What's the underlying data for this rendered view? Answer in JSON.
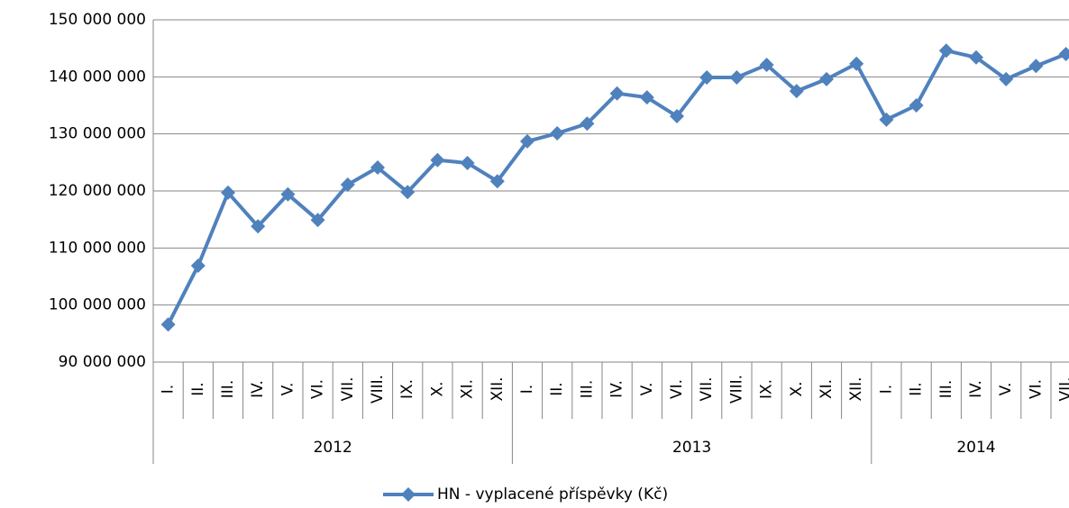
{
  "chart_data": {
    "type": "line",
    "categories": [
      [
        "2012",
        "I."
      ],
      [
        "2012",
        "II."
      ],
      [
        "2012",
        "III."
      ],
      [
        "2012",
        "IV."
      ],
      [
        "2012",
        "V."
      ],
      [
        "2012",
        "VI."
      ],
      [
        "2012",
        "VII."
      ],
      [
        "2012",
        "VIII."
      ],
      [
        "2012",
        "IX."
      ],
      [
        "2012",
        "X."
      ],
      [
        "2012",
        "XI."
      ],
      [
        "2012",
        "XII."
      ],
      [
        "2013",
        "I."
      ],
      [
        "2013",
        "II."
      ],
      [
        "2013",
        "III."
      ],
      [
        "2013",
        "IV."
      ],
      [
        "2013",
        "V."
      ],
      [
        "2013",
        "VI."
      ],
      [
        "2013",
        "VII."
      ],
      [
        "2013",
        "VIII."
      ],
      [
        "2013",
        "IX."
      ],
      [
        "2013",
        "X."
      ],
      [
        "2013",
        "XI."
      ],
      [
        "2013",
        "XII."
      ],
      [
        "2014",
        "I."
      ],
      [
        "2014",
        "II."
      ],
      [
        "2014",
        "III."
      ],
      [
        "2014",
        "IV."
      ],
      [
        "2014",
        "V."
      ],
      [
        "2014",
        "VI."
      ],
      [
        "2014",
        "VII."
      ]
    ],
    "series": [
      {
        "name": "HN - vyplacené příspěvky (Kč)",
        "color": "#4f81bd",
        "values": [
          96600000,
          106900000,
          119700000,
          113800000,
          119400000,
          114900000,
          121100000,
          124100000,
          119800000,
          125400000,
          124900000,
          121700000,
          128700000,
          130100000,
          131800000,
          137100000,
          136400000,
          133100000,
          139900000,
          139900000,
          142100000,
          137500000,
          139600000,
          142300000,
          132500000,
          135000000,
          144600000,
          143400000,
          139600000,
          141900000,
          144000000
        ]
      }
    ],
    "ylim": [
      90000000,
      150000000
    ],
    "yticks": [
      {
        "value": 90000000,
        "label": "90 000 000"
      },
      {
        "value": 100000000,
        "label": "100 000 000"
      },
      {
        "value": 110000000,
        "label": "110 000 000"
      },
      {
        "value": 120000000,
        "label": "120 000 000"
      },
      {
        "value": 130000000,
        "label": "130 000 000"
      },
      {
        "value": 140000000,
        "label": "140 000 000"
      },
      {
        "value": 150000000,
        "label": "150 000 000"
      }
    ],
    "grid": true,
    "legend": "bottom"
  }
}
